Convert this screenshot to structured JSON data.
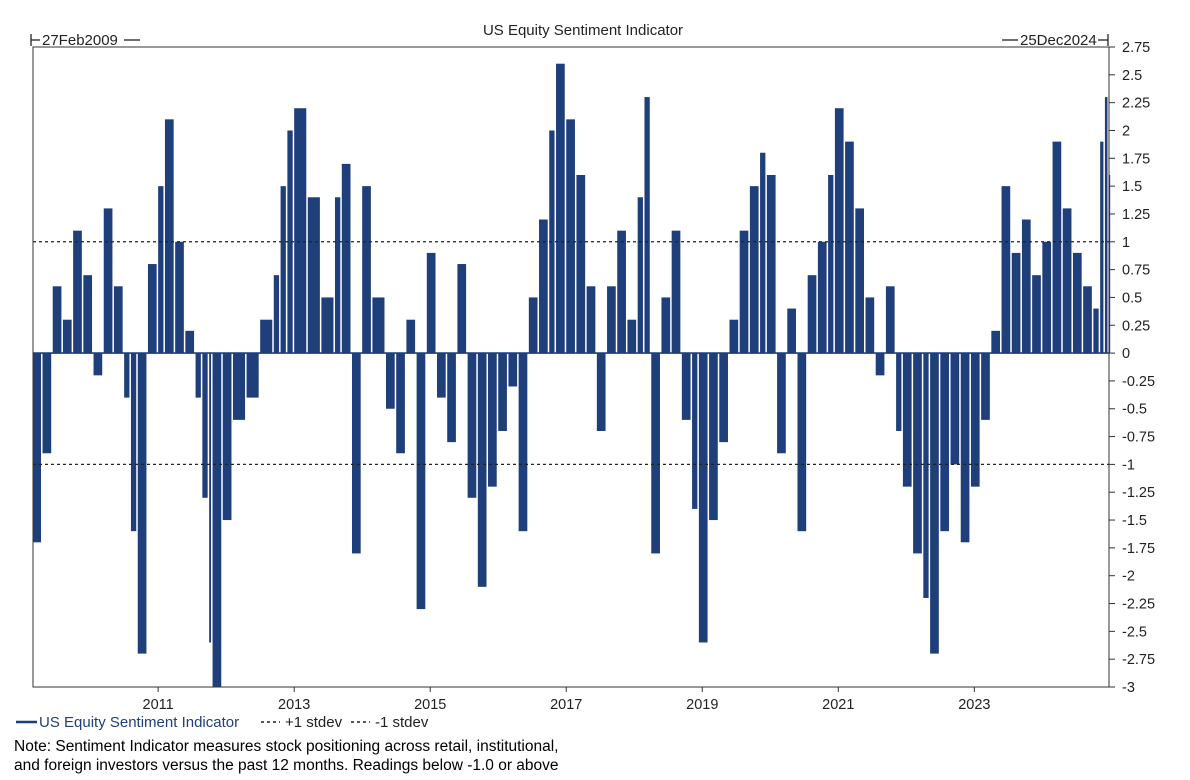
{
  "chart_data": {
    "type": "bar",
    "title": "US Equity Sentiment Indicator",
    "start_label": "27Feb2009",
    "end_label": "25Dec2024",
    "xlabel": "",
    "ylabel": "",
    "ylim": [
      -3,
      2.75
    ],
    "y_ticks": [
      2.75,
      2.5,
      2.25,
      2,
      1.75,
      1.5,
      1.25,
      1,
      0.75,
      0.5,
      0.25,
      0,
      -0.25,
      -0.5,
      -0.75,
      -1,
      -1.25,
      -1.5,
      -1.75,
      -2,
      -2.25,
      -2.5,
      -2.75,
      -3
    ],
    "y_tick_labels": [
      "2.75",
      "2.5",
      "2.25",
      "2",
      "1.75",
      "1.5",
      "1.25",
      "1",
      "0.75",
      "0.5",
      "0.25",
      "0",
      "-0.25",
      "-0.5",
      "-0.75",
      "-1",
      "-1.25",
      "-1.5",
      "-1.75",
      "-2",
      "-2.25",
      "-2.5",
      "-2.75",
      "-3"
    ],
    "x_range": [
      2009.16,
      2024.98
    ],
    "x_ticks": [
      2011,
      2013,
      2015,
      2017,
      2019,
      2021,
      2023
    ],
    "x_tick_labels": [
      "2011",
      "2013",
      "2015",
      "2017",
      "2019",
      "2021",
      "2023"
    ],
    "reference_lines": [
      {
        "name": "+1 stdev",
        "value": 1,
        "style": "dashed"
      },
      {
        "name": "-1 stdev",
        "value": -1,
        "style": "dashed"
      }
    ],
    "series": [
      {
        "name": "US Equity Sentiment Indicator",
        "color": "#1f3f7a",
        "points": [
          [
            2009.16,
            -1.7
          ],
          [
            2009.3,
            -0.9
          ],
          [
            2009.45,
            0.6
          ],
          [
            2009.6,
            0.3
          ],
          [
            2009.75,
            1.1
          ],
          [
            2009.9,
            0.7
          ],
          [
            2010.05,
            -0.2
          ],
          [
            2010.2,
            1.3
          ],
          [
            2010.35,
            0.6
          ],
          [
            2010.5,
            -0.4
          ],
          [
            2010.6,
            -1.6
          ],
          [
            2010.7,
            -2.7
          ],
          [
            2010.85,
            0.8
          ],
          [
            2011.0,
            1.5
          ],
          [
            2011.1,
            2.1
          ],
          [
            2011.25,
            1.0
          ],
          [
            2011.4,
            0.2
          ],
          [
            2011.55,
            -0.4
          ],
          [
            2011.65,
            -1.3
          ],
          [
            2011.75,
            -2.6
          ],
          [
            2011.8,
            -3.0
          ],
          [
            2011.95,
            -1.5
          ],
          [
            2012.1,
            -0.6
          ],
          [
            2012.3,
            -0.4
          ],
          [
            2012.5,
            0.3
          ],
          [
            2012.7,
            0.7
          ],
          [
            2012.8,
            1.5
          ],
          [
            2012.9,
            2.0
          ],
          [
            2013.0,
            2.2
          ],
          [
            2013.2,
            1.4
          ],
          [
            2013.4,
            0.5
          ],
          [
            2013.6,
            1.4
          ],
          [
            2013.7,
            1.7
          ],
          [
            2013.85,
            -1.8
          ],
          [
            2014.0,
            1.5
          ],
          [
            2014.15,
            0.5
          ],
          [
            2014.35,
            -0.5
          ],
          [
            2014.5,
            -0.9
          ],
          [
            2014.65,
            0.3
          ],
          [
            2014.8,
            -2.3
          ],
          [
            2014.95,
            0.9
          ],
          [
            2015.1,
            -0.4
          ],
          [
            2015.25,
            -0.8
          ],
          [
            2015.4,
            0.8
          ],
          [
            2015.55,
            -1.3
          ],
          [
            2015.7,
            -2.1
          ],
          [
            2015.85,
            -1.2
          ],
          [
            2016.0,
            -0.7
          ],
          [
            2016.15,
            -0.3
          ],
          [
            2016.3,
            -1.6
          ],
          [
            2016.45,
            0.5
          ],
          [
            2016.6,
            1.2
          ],
          [
            2016.75,
            2.0
          ],
          [
            2016.85,
            2.6
          ],
          [
            2017.0,
            2.1
          ],
          [
            2017.15,
            1.6
          ],
          [
            2017.3,
            0.6
          ],
          [
            2017.45,
            -0.7
          ],
          [
            2017.6,
            0.6
          ],
          [
            2017.75,
            1.1
          ],
          [
            2017.9,
            0.3
          ],
          [
            2018.05,
            1.4
          ],
          [
            2018.15,
            2.3
          ],
          [
            2018.25,
            -1.8
          ],
          [
            2018.4,
            0.5
          ],
          [
            2018.55,
            1.1
          ],
          [
            2018.7,
            -0.6
          ],
          [
            2018.85,
            -1.4
          ],
          [
            2018.95,
            -2.6
          ],
          [
            2019.1,
            -1.5
          ],
          [
            2019.25,
            -0.8
          ],
          [
            2019.4,
            0.3
          ],
          [
            2019.55,
            1.1
          ],
          [
            2019.7,
            1.5
          ],
          [
            2019.85,
            1.8
          ],
          [
            2019.95,
            1.6
          ],
          [
            2020.1,
            -0.9
          ],
          [
            2020.25,
            0.4
          ],
          [
            2020.4,
            -1.6
          ],
          [
            2020.55,
            0.7
          ],
          [
            2020.7,
            1.0
          ],
          [
            2020.85,
            1.6
          ],
          [
            2020.95,
            2.2
          ],
          [
            2021.1,
            1.9
          ],
          [
            2021.25,
            1.3
          ],
          [
            2021.4,
            0.5
          ],
          [
            2021.55,
            -0.2
          ],
          [
            2021.7,
            0.6
          ],
          [
            2021.85,
            -0.7
          ],
          [
            2021.95,
            -1.2
          ],
          [
            2022.1,
            -1.8
          ],
          [
            2022.25,
            -2.2
          ],
          [
            2022.35,
            -2.7
          ],
          [
            2022.5,
            -1.6
          ],
          [
            2022.65,
            -1.0
          ],
          [
            2022.8,
            -1.7
          ],
          [
            2022.95,
            -1.2
          ],
          [
            2023.1,
            -0.6
          ],
          [
            2023.25,
            0.2
          ],
          [
            2023.4,
            1.5
          ],
          [
            2023.55,
            0.9
          ],
          [
            2023.7,
            1.2
          ],
          [
            2023.85,
            0.7
          ],
          [
            2024.0,
            1.0
          ],
          [
            2024.15,
            1.9
          ],
          [
            2024.3,
            1.3
          ],
          [
            2024.45,
            0.9
          ],
          [
            2024.6,
            0.6
          ],
          [
            2024.75,
            0.4
          ],
          [
            2024.85,
            1.9
          ],
          [
            2024.92,
            2.3
          ],
          [
            2024.98,
            1.6
          ]
        ]
      }
    ]
  },
  "legend": {
    "series_label": "US Equity Sentiment Indicator",
    "plus_label": "+1 stdev",
    "minus_label": "-1 stdev"
  },
  "note": {
    "line1": "Note: Sentiment Indicator measures stock positioning across retail, institutional,",
    "line2": "and foreign investors versus the past 12 months. Readings below -1.0 or above"
  },
  "colors": {
    "bar": "#1f3f7a",
    "legend_text": "#1f3f7a",
    "ref_line": "#222222"
  }
}
